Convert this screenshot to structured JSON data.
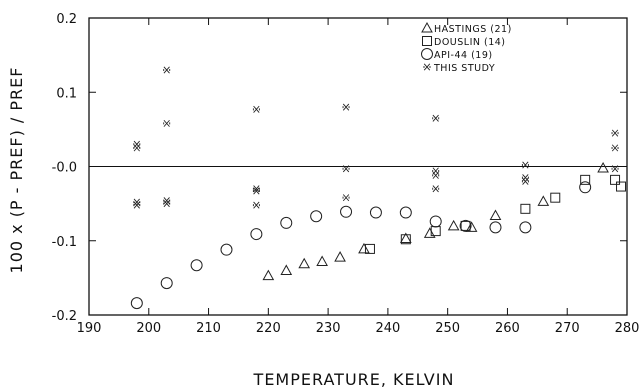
{
  "chart_data": {
    "type": "scatter",
    "title": "",
    "xlabel": "TEMPERATURE, KELVIN",
    "ylabel": "100 x (P - PREF) / PREF",
    "xlim": [
      190,
      280
    ],
    "ylim": [
      -0.2,
      0.2
    ],
    "xticks": [
      190,
      200,
      210,
      220,
      230,
      240,
      250,
      260,
      270,
      280
    ],
    "yticks": [
      -0.2,
      -0.1,
      0.0,
      0.1,
      0.2
    ],
    "xtick_labels": [
      "190",
      "200",
      "210",
      "220",
      "230",
      "240",
      "250",
      "260",
      "270",
      "280"
    ],
    "ytick_labels": [
      "-0.2",
      "-0.1",
      "-0.0",
      "0.1",
      "0.2"
    ],
    "zero_line": true,
    "grid": false,
    "legend_position": "top-right",
    "series": [
      {
        "name": "HASTINGS (21)",
        "marker": "triangle",
        "x": [
          220,
          223,
          226,
          229,
          232,
          236,
          243,
          247,
          251,
          254,
          258,
          266,
          276
        ],
        "y": [
          -0.147,
          -0.14,
          -0.131,
          -0.128,
          -0.122,
          -0.111,
          -0.097,
          -0.09,
          -0.08,
          -0.082,
          -0.066,
          -0.047,
          -0.002
        ]
      },
      {
        "name": "DOUSLIN (14)",
        "marker": "square",
        "x": [
          237,
          243,
          248,
          253,
          263,
          268,
          273,
          278,
          279
        ],
        "y": [
          -0.111,
          -0.098,
          -0.087,
          -0.08,
          -0.057,
          -0.042,
          -0.018,
          -0.018,
          -0.027
        ]
      },
      {
        "name": "API-44 (19)",
        "marker": "circle",
        "x": [
          198,
          203,
          208,
          213,
          218,
          223,
          228,
          233,
          238,
          243,
          248,
          253,
          258,
          263,
          273
        ],
        "y": [
          -0.184,
          -0.157,
          -0.133,
          -0.112,
          -0.091,
          -0.076,
          -0.067,
          -0.061,
          -0.062,
          -0.062,
          -0.074,
          -0.08,
          -0.082,
          -0.082,
          -0.028
        ]
      },
      {
        "name": "THIS STUDY",
        "marker": "star",
        "x": [
          198,
          198,
          198,
          198,
          203,
          203,
          203,
          203,
          218,
          218,
          218,
          218,
          233,
          233,
          233,
          248,
          248,
          248,
          248,
          263,
          263,
          263,
          278,
          278,
          278
        ],
        "y": [
          0.025,
          0.03,
          -0.048,
          -0.052,
          0.13,
          0.058,
          -0.046,
          -0.05,
          0.077,
          -0.03,
          -0.033,
          -0.052,
          0.08,
          -0.003,
          -0.042,
          0.065,
          -0.006,
          -0.012,
          -0.03,
          0.002,
          -0.015,
          -0.02,
          0.045,
          0.025,
          -0.003
        ]
      }
    ]
  }
}
